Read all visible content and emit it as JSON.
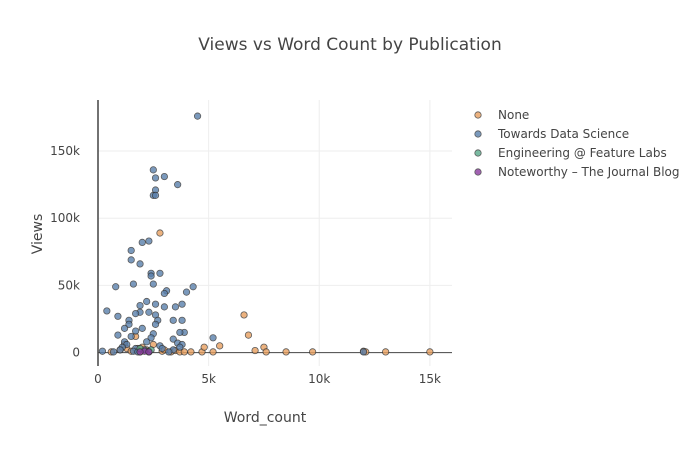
{
  "chart_data": {
    "type": "scatter",
    "title": "Views vs Word Count by Publication",
    "xlabel": "Word_count",
    "ylabel": "Views",
    "xlim": [
      0,
      16000
    ],
    "ylim": [
      -10000,
      188000
    ],
    "x_ticks": [
      {
        "value": 0,
        "label": "0"
      },
      {
        "value": 5000,
        "label": "5k"
      },
      {
        "value": 10000,
        "label": "10k"
      },
      {
        "value": 15000,
        "label": "15k"
      }
    ],
    "y_ticks": [
      {
        "value": 0,
        "label": "0"
      },
      {
        "value": 50000,
        "label": "50k"
      },
      {
        "value": 100000,
        "label": "100k"
      },
      {
        "value": 150000,
        "label": "150k"
      }
    ],
    "grid": true,
    "legend_position": "top-right",
    "series": [
      {
        "name": "None",
        "color": "#e8a060",
        "points": [
          [
            600,
            500
          ],
          [
            1000,
            2000
          ],
          [
            1200,
            6000
          ],
          [
            1300,
            3000
          ],
          [
            1500,
            1000
          ],
          [
            1700,
            12000
          ],
          [
            1800,
            3000
          ],
          [
            1900,
            500
          ],
          [
            2000,
            4000
          ],
          [
            2200,
            2000
          ],
          [
            2300,
            500
          ],
          [
            2500,
            6000
          ],
          [
            2800,
            89000
          ],
          [
            2900,
            1000
          ],
          [
            3000,
            2000
          ],
          [
            3300,
            500
          ],
          [
            3500,
            1500
          ],
          [
            3700,
            500
          ],
          [
            3900,
            500
          ],
          [
            4200,
            500
          ],
          [
            4700,
            500
          ],
          [
            4800,
            4000
          ],
          [
            5200,
            500
          ],
          [
            5500,
            5000
          ],
          [
            6600,
            28000
          ],
          [
            6800,
            13000
          ],
          [
            7100,
            1500
          ],
          [
            7500,
            4000
          ],
          [
            7600,
            500
          ],
          [
            8500,
            500
          ],
          [
            9700,
            500
          ],
          [
            12000,
            1000
          ],
          [
            12100,
            500
          ],
          [
            13000,
            500
          ],
          [
            15000,
            500
          ]
        ]
      },
      {
        "name": "Towards Data Science",
        "color": "#5a80ac",
        "points": [
          [
            4500,
            176000
          ],
          [
            2500,
            136000
          ],
          [
            3000,
            131000
          ],
          [
            2600,
            130000
          ],
          [
            3600,
            125000
          ],
          [
            2600,
            121000
          ],
          [
            2500,
            117000
          ],
          [
            2600,
            117000
          ],
          [
            2300,
            83000
          ],
          [
            2000,
            82000
          ],
          [
            1500,
            76000
          ],
          [
            1500,
            69000
          ],
          [
            1900,
            66000
          ],
          [
            2400,
            59000
          ],
          [
            2800,
            59000
          ],
          [
            2400,
            57000
          ],
          [
            2500,
            51000
          ],
          [
            1600,
            51000
          ],
          [
            800,
            49000
          ],
          [
            4300,
            49000
          ],
          [
            3100,
            46000
          ],
          [
            4000,
            45000
          ],
          [
            3000,
            44000
          ],
          [
            2200,
            38000
          ],
          [
            2600,
            36000
          ],
          [
            3800,
            36000
          ],
          [
            1900,
            35000
          ],
          [
            3500,
            34000
          ],
          [
            3000,
            34000
          ],
          [
            400,
            31000
          ],
          [
            1900,
            30000
          ],
          [
            2300,
            30000
          ],
          [
            1700,
            29000
          ],
          [
            2600,
            28000
          ],
          [
            900,
            27000
          ],
          [
            1400,
            24000
          ],
          [
            3400,
            24000
          ],
          [
            2700,
            24000
          ],
          [
            3800,
            24000
          ],
          [
            1400,
            21000
          ],
          [
            2600,
            21000
          ],
          [
            1200,
            18000
          ],
          [
            2000,
            18000
          ],
          [
            1700,
            16000
          ],
          [
            3900,
            15000
          ],
          [
            3700,
            15000
          ],
          [
            2500,
            14000
          ],
          [
            900,
            13000
          ],
          [
            1500,
            12000
          ],
          [
            2400,
            11000
          ],
          [
            3400,
            10000
          ],
          [
            5200,
            11000
          ],
          [
            2200,
            8000
          ],
          [
            1200,
            8000
          ],
          [
            3600,
            7000
          ],
          [
            1300,
            6000
          ],
          [
            3800,
            6000
          ],
          [
            2800,
            5000
          ],
          [
            3700,
            4000
          ],
          [
            1100,
            4000
          ],
          [
            1700,
            3000
          ],
          [
            2900,
            3000
          ],
          [
            1000,
            2000
          ],
          [
            2100,
            2000
          ],
          [
            3400,
            2000
          ],
          [
            200,
            1000
          ],
          [
            1600,
            1000
          ],
          [
            2300,
            1000
          ],
          [
            3200,
            500
          ],
          [
            700,
            500
          ],
          [
            1800,
            500
          ],
          [
            12000,
            500
          ]
        ]
      },
      {
        "name": "Engineering @ Feature Labs",
        "color": "#5aaa8a",
        "points": [
          [
            1900,
            3000
          ],
          [
            2400,
            2000
          ]
        ]
      },
      {
        "name": "Noteworthy - The Journal Blog",
        "color": "#8a3aa0",
        "points": [
          [
            2100,
            1000
          ],
          [
            2300,
            500
          ],
          [
            1900,
            500
          ]
        ]
      }
    ],
    "legend_entries": [
      "None",
      "Towards Data Science",
      "Engineering @ Feature Labs",
      "Noteworthy – The Journal Blog"
    ]
  }
}
